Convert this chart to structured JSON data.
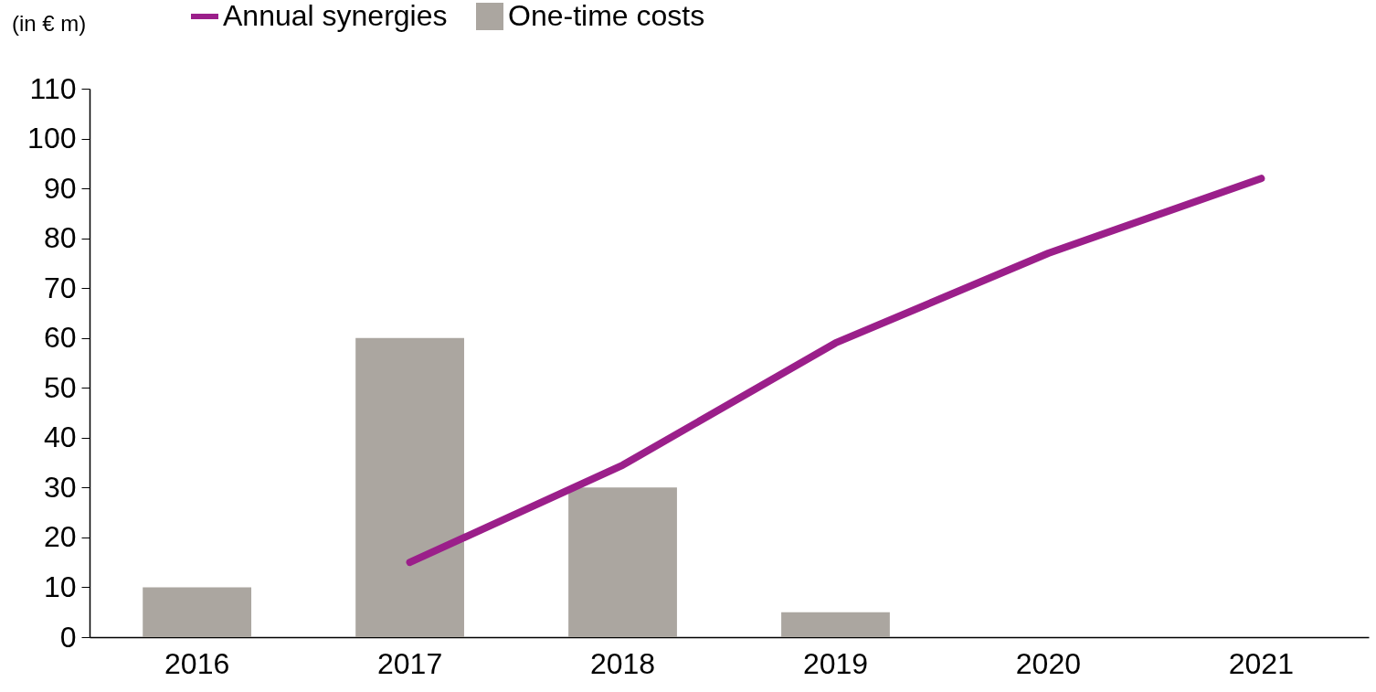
{
  "chart_data": {
    "type": "bar",
    "categories": [
      "2016",
      "2017",
      "2018",
      "2019",
      "2020",
      "2021"
    ],
    "series": [
      {
        "name": "Annual synergies",
        "type": "line",
        "color": "#9b1f8a",
        "values": [
          null,
          15,
          34.5,
          59,
          77,
          92
        ]
      },
      {
        "name": "One-time costs",
        "color": "#aba6a0",
        "values": [
          10,
          60,
          30,
          5,
          null,
          null
        ]
      }
    ],
    "ylim": [
      0,
      110
    ],
    "yticks": [
      0,
      10,
      20,
      30,
      40,
      50,
      60,
      70,
      80,
      90,
      100,
      110
    ],
    "grid": false,
    "legend": "top",
    "annotations": [
      "(in € m)"
    ]
  }
}
